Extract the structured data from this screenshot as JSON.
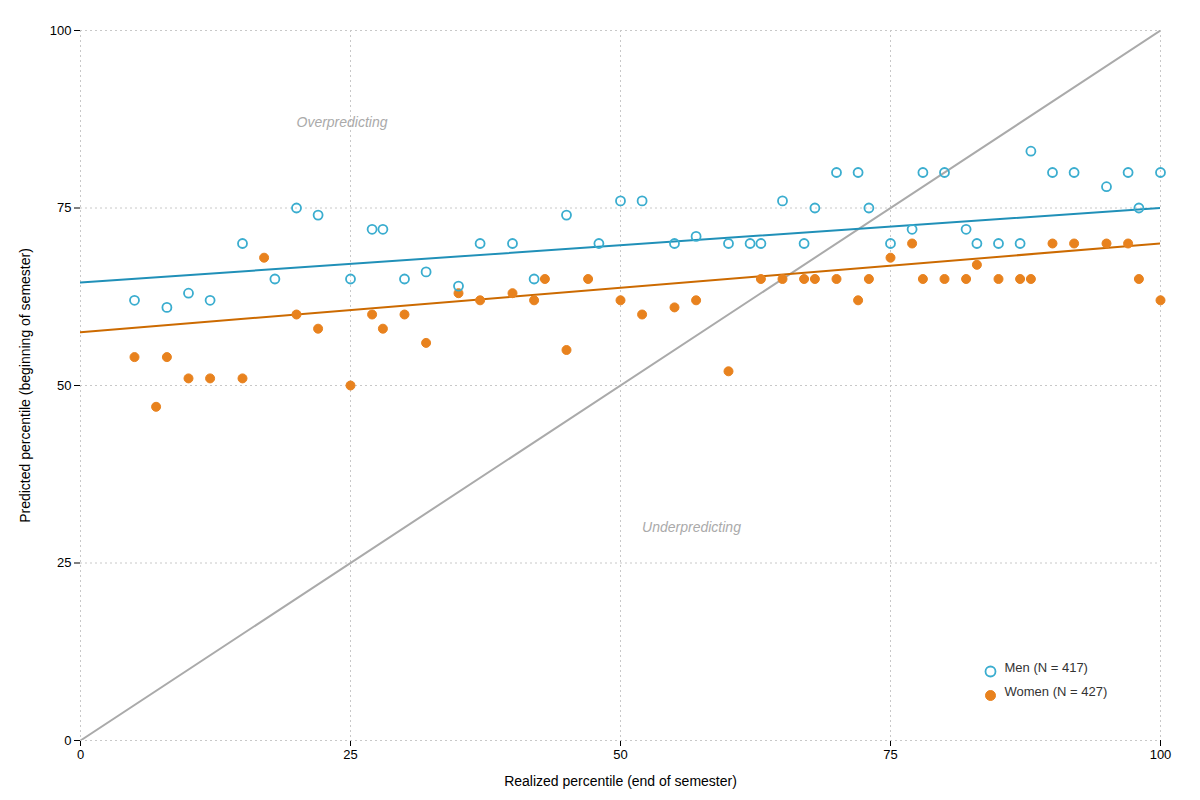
{
  "chart_data": {
    "type": "scatter",
    "xlabel": "Realized percentile (end of semester)",
    "ylabel": "Predicted percentile (beginning of semester)",
    "xlim": [
      0,
      100
    ],
    "ylim": [
      0,
      100
    ],
    "xticks": [
      0,
      25,
      50,
      75,
      100
    ],
    "yticks": [
      0,
      25,
      50,
      75,
      100
    ],
    "grid": true,
    "legend": "lower right",
    "annotations": [
      {
        "text": "Overpredicting",
        "x": 20,
        "y": 87
      },
      {
        "text": "Underpredicting",
        "x": 52,
        "y": 30
      }
    ],
    "series": [
      {
        "name": "Men (N = 417)",
        "type": "scatter",
        "marker": "open_circle",
        "color": "#3aadcf",
        "x": [
          5,
          8,
          10,
          12,
          15,
          18,
          20,
          22,
          25,
          27,
          28,
          30,
          32,
          35,
          37,
          40,
          42,
          45,
          48,
          50,
          52,
          55,
          57,
          60,
          62,
          63,
          65,
          67,
          68,
          70,
          72,
          73,
          75,
          77,
          78,
          80,
          82,
          83,
          85,
          87,
          88,
          90,
          92,
          95,
          97,
          98,
          100
        ],
        "values": [
          62,
          61,
          63,
          62,
          70,
          65,
          75,
          74,
          65,
          72,
          72,
          65,
          66,
          64,
          70,
          70,
          65,
          74,
          70,
          76,
          76,
          70,
          71,
          70,
          70,
          70,
          76,
          70,
          75,
          80,
          80,
          75,
          70,
          72,
          80,
          80,
          72,
          70,
          70,
          70,
          83,
          80,
          80,
          78,
          80,
          75,
          80
        ]
      },
      {
        "name": "Women (N = 427)",
        "type": "scatter",
        "marker": "circle",
        "color": "#e8821e",
        "x": [
          5,
          7,
          8,
          10,
          12,
          15,
          17,
          20,
          22,
          25,
          27,
          28,
          30,
          32,
          35,
          37,
          40,
          42,
          43,
          45,
          47,
          50,
          52,
          55,
          57,
          60,
          63,
          65,
          67,
          68,
          70,
          72,
          73,
          75,
          77,
          78,
          80,
          82,
          83,
          85,
          87,
          88,
          90,
          92,
          95,
          97,
          98,
          100
        ],
        "values": [
          54,
          47,
          54,
          51,
          51,
          51,
          68,
          60,
          58,
          50,
          60,
          58,
          60,
          56,
          63,
          62,
          63,
          62,
          65,
          55,
          65,
          62,
          60,
          61,
          62,
          52,
          65,
          65,
          65,
          65,
          65,
          62,
          65,
          68,
          70,
          65,
          65,
          65,
          67,
          65,
          65,
          65,
          70,
          70,
          70,
          70,
          65,
          62
        ]
      },
      {
        "type": "line",
        "color": "#2090b8",
        "x": [
          0,
          100
        ],
        "values": [
          64.5,
          75.0
        ]
      },
      {
        "type": "line",
        "color": "#cc6a00",
        "x": [
          0,
          100
        ],
        "values": [
          57.5,
          70.0
        ]
      },
      {
        "type": "line",
        "color": "#aaaaaa",
        "x": [
          0,
          100
        ],
        "values": [
          0,
          100
        ]
      }
    ]
  }
}
